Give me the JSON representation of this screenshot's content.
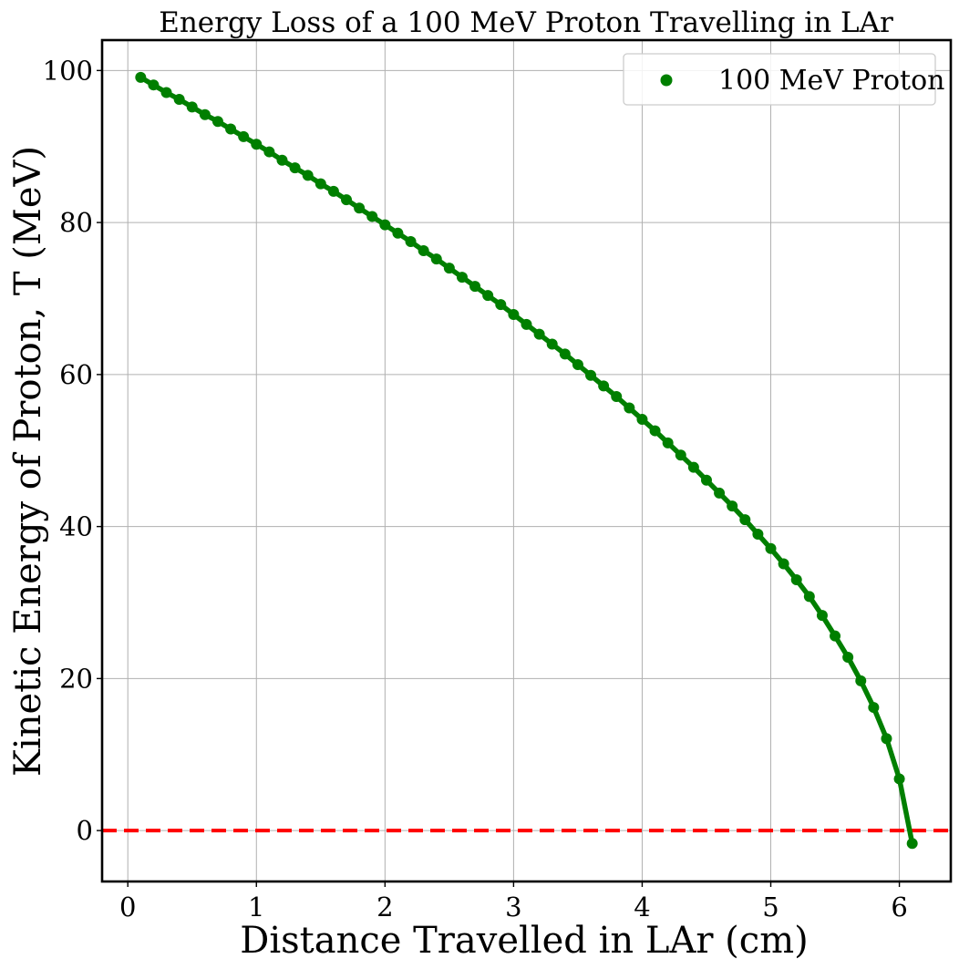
{
  "chart_data": {
    "type": "scatter",
    "title": "Energy Loss of a 100 MeV Proton Travelling in LAr",
    "xlabel": "Distance Travelled in LAr (cm)",
    "ylabel": "Kinetic Energy of Proton, T (MeV)",
    "xlim": [
      -0.2,
      6.4
    ],
    "ylim": [
      -6.7,
      104
    ],
    "xticks": [
      0,
      1,
      2,
      3,
      4,
      5,
      6
    ],
    "yticks": [
      0,
      20,
      40,
      60,
      80,
      100
    ],
    "grid": true,
    "legend_position": "top-right",
    "series": [
      {
        "name": "100 MeV Proton",
        "color": "#007f00",
        "marker": "circle",
        "line": true,
        "x": [
          0.1,
          0.2,
          0.3,
          0.4,
          0.5,
          0.6,
          0.7,
          0.8,
          0.9,
          1.0,
          1.1,
          1.2,
          1.3,
          1.4,
          1.5,
          1.6,
          1.7,
          1.8,
          1.9,
          2.0,
          2.1,
          2.2,
          2.3,
          2.4,
          2.5,
          2.6,
          2.7,
          2.8,
          2.9,
          3.0,
          3.1,
          3.2,
          3.3,
          3.4,
          3.5,
          3.6,
          3.7,
          3.8,
          3.9,
          4.0,
          4.1,
          4.2,
          4.3,
          4.4,
          4.5,
          4.6,
          4.7,
          4.8,
          4.9,
          5.0,
          5.1,
          5.2,
          5.3,
          5.4,
          5.5,
          5.6,
          5.7,
          5.8,
          5.9,
          6.0,
          6.1
        ],
        "y": [
          99.1,
          98.1,
          97.1,
          96.2,
          95.2,
          94.2,
          93.3,
          92.3,
          91.3,
          90.3,
          89.3,
          88.2,
          87.2,
          86.2,
          85.1,
          84.1,
          83.0,
          81.9,
          80.8,
          79.7,
          78.6,
          77.5,
          76.3,
          75.2,
          74.0,
          72.8,
          71.6,
          70.4,
          69.2,
          67.9,
          66.6,
          65.3,
          64.0,
          62.7,
          61.3,
          59.9,
          58.5,
          57.1,
          55.6,
          54.1,
          52.6,
          51.0,
          49.4,
          47.8,
          46.1,
          44.4,
          42.7,
          40.9,
          39.0,
          37.1,
          35.1,
          33.0,
          30.8,
          28.3,
          25.6,
          22.8,
          19.7,
          16.2,
          12.1,
          6.8,
          -1.7
        ]
      },
      {
        "name": "",
        "color": "#ff0000",
        "style": "dashed",
        "type": "hline",
        "y": 0
      }
    ]
  }
}
